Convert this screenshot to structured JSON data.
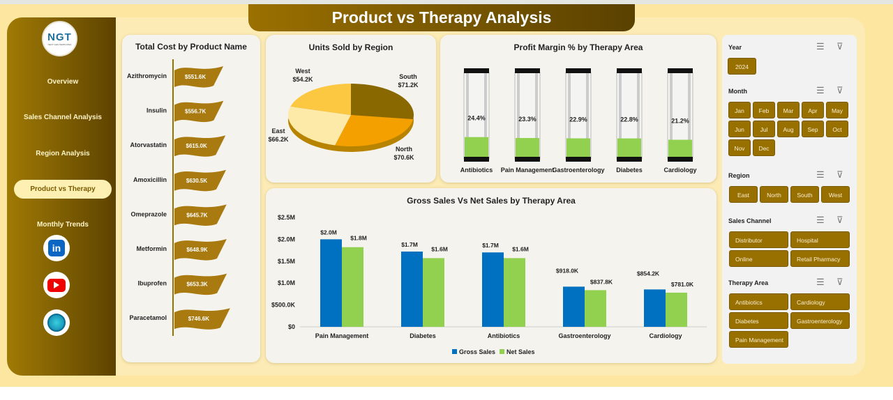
{
  "header": {
    "title": "Product vs Therapy Analysis"
  },
  "logo": {
    "text": "NGT",
    "subtitle": "NEXT GEN TEMPLATES"
  },
  "sidebar": {
    "items": [
      {
        "label": "Overview"
      },
      {
        "label": "Sales Channel Analysis"
      },
      {
        "label": "Region Analysis"
      },
      {
        "label": "Product vs Therapy",
        "active": true
      },
      {
        "label": "Monthly Trends"
      }
    ],
    "social": [
      {
        "icon": "linkedin-icon",
        "label": "in"
      },
      {
        "icon": "youtube-icon"
      },
      {
        "icon": "globe-icon"
      }
    ]
  },
  "colors": {
    "gold": "#987000",
    "blue": "#0070c0",
    "green": "#92d050"
  },
  "slicers": {
    "year": {
      "title": "Year",
      "items": [
        "2024"
      ]
    },
    "month": {
      "title": "Month",
      "items": [
        "Jan",
        "Feb",
        "Mar",
        "Apr",
        "May",
        "Jun",
        "Jul",
        "Aug",
        "Sep",
        "Oct",
        "Nov",
        "Dec"
      ]
    },
    "region": {
      "title": "Region",
      "items": [
        "East",
        "North",
        "South",
        "West"
      ]
    },
    "channel": {
      "title": "Sales Channel",
      "items": [
        "Distributor",
        "Hospital",
        "Online",
        "Retail Pharmacy"
      ]
    },
    "therapy": {
      "title": "Therapy Area",
      "items": [
        "Antibiotics",
        "Cardiology",
        "Diabetes",
        "Gastroenterology",
        "Pain Management"
      ]
    }
  },
  "chart_data": [
    {
      "type": "bar",
      "title": "Total Cost by Product Name",
      "categories": [
        "Azithromycin",
        "Insulin",
        "Atorvastatin",
        "Amoxicillin",
        "Omeprazole",
        "Metformin",
        "Ibuprofen",
        "Paracetamol"
      ],
      "values": [
        551.6,
        556.7,
        615.0,
        630.5,
        645.7,
        648.9,
        653.3,
        746.6
      ],
      "labels": [
        "$551.6K",
        "$556.7K",
        "$615.0K",
        "$630.5K",
        "$645.7K",
        "$648.9K",
        "$653.3K",
        "$746.6K"
      ],
      "unit": "K$"
    },
    {
      "type": "pie",
      "title": "Units Sold by Region",
      "categories": [
        "South",
        "North",
        "East",
        "West"
      ],
      "values": [
        71.2,
        70.6,
        66.2,
        54.2
      ],
      "labels": [
        "$71.2K",
        "$70.6K",
        "$66.2K",
        "$54.2K"
      ],
      "colors": [
        "#8a6800",
        "#f3a000",
        "#fde9a8",
        "#fcc842"
      ]
    },
    {
      "type": "bar",
      "title": "Profit Margin % by Therapy Area",
      "categories": [
        "Antibiotics",
        "Pain Management",
        "Gastroenterology",
        "Diabetes",
        "Cardiology"
      ],
      "values": [
        24.4,
        23.3,
        22.9,
        22.8,
        21.2
      ],
      "labels": [
        "24.4%",
        "23.3%",
        "22.9%",
        "22.8%",
        "21.2%"
      ]
    },
    {
      "type": "bar",
      "title": "Gross Sales Vs Net Sales by Therapy Area",
      "categories": [
        "Pain Management",
        "Diabetes",
        "Antibiotics",
        "Gastroenterology",
        "Cardiology"
      ],
      "series": [
        {
          "name": "Gross Sales",
          "values": [
            2.0,
            1.72,
            1.7,
            0.918,
            0.8542
          ],
          "labels": [
            "$2.0M",
            "$1.7M",
            "$1.7M",
            "$918.0K",
            "$854.2K"
          ]
        },
        {
          "name": "Net Sales",
          "values": [
            1.82,
            1.57,
            1.57,
            0.8378,
            0.781
          ],
          "labels": [
            "$1.8M",
            "$1.6M",
            "$1.6M",
            "$837.8K",
            "$781.0K"
          ]
        }
      ],
      "yticks": [
        "$0",
        "$500.0K",
        "$1.0M",
        "$1.5M",
        "$2.0M",
        "$2.5M"
      ],
      "ylim": [
        0,
        2.5
      ],
      "ylabel": "",
      "legend": "bottom"
    }
  ]
}
